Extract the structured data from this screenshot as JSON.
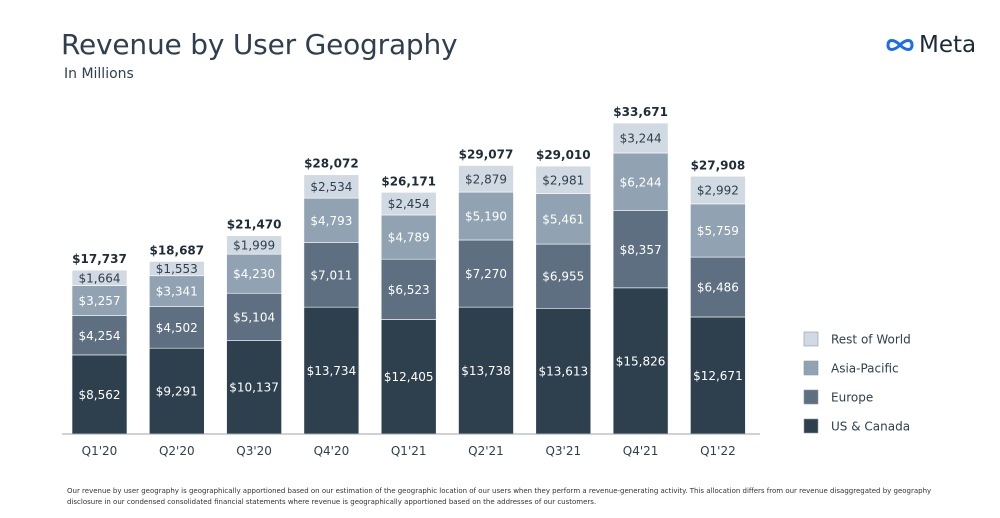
{
  "title": "Revenue by User Geography",
  "subtitle": "In Millions",
  "logo": {
    "text": "Meta",
    "icon": "meta-infinity-logo"
  },
  "footnote": "Our revenue by user geography is geographically apportioned based on our estimation of the geographic location of our users when they perform a revenue-generating activity. This allocation differs from our revenue disaggregated by geography disclosure in our condensed consolidated financial statements where revenue is geographically apportioned based on the addresses of our customers.",
  "colors": {
    "us_canada": "#2e3f4e",
    "europe": "#5d6f80",
    "asia_pacific": "#91a2b2",
    "rest_of_world": "#d1dae2",
    "total_text": "#1f2d3a",
    "axis": "#9aa5af"
  },
  "chart_data": {
    "type": "bar",
    "stacked": true,
    "title": "Revenue by User Geography",
    "subtitle": "In Millions",
    "categories": [
      "Q1'20",
      "Q2'20",
      "Q3'20",
      "Q4'20",
      "Q1'21",
      "Q2'21",
      "Q3'21",
      "Q4'21",
      "Q1'22"
    ],
    "series": [
      {
        "name": "US & Canada",
        "values": [
          8562,
          9291,
          10137,
          13734,
          12405,
          13738,
          13613,
          15826,
          12671
        ],
        "labels": [
          "$8,562",
          "$9,291",
          "$10,137",
          "$13,734",
          "$12,405",
          "$13,738",
          "$13,613",
          "$15,826",
          "$12,671"
        ]
      },
      {
        "name": "Europe",
        "values": [
          4254,
          4502,
          5104,
          7011,
          6523,
          7270,
          6955,
          8357,
          6486
        ],
        "labels": [
          "$4,254",
          "$4,502",
          "$5,104",
          "$7,011",
          "$6,523",
          "$7,270",
          "$6,955",
          "$8,357",
          "$6,486"
        ]
      },
      {
        "name": "Asia-Pacific",
        "values": [
          3257,
          3341,
          4230,
          4793,
          4789,
          5190,
          5461,
          6244,
          5759
        ],
        "labels": [
          "$3,257",
          "$3,341",
          "$4,230",
          "$4,793",
          "$4,789",
          "$5,190",
          "$5,461",
          "$6,244",
          "$5,759"
        ]
      },
      {
        "name": "Rest of World",
        "values": [
          1664,
          1553,
          1999,
          2534,
          2454,
          2879,
          2981,
          3244,
          2992
        ],
        "labels": [
          "$1,664",
          "$1,553",
          "$1,999",
          "$2,534",
          "$2,454",
          "$2,879",
          "$2,981",
          "$3,244",
          "$2,992"
        ]
      }
    ],
    "totals": [
      17737,
      18687,
      21470,
      28072,
      26171,
      29077,
      29010,
      33671,
      27908
    ],
    "total_labels": [
      "$17,737",
      "$18,687",
      "$21,470",
      "$28,072",
      "$26,171",
      "$29,077",
      "$29,010",
      "$33,671",
      "$27,908"
    ],
    "ylim": [
      0,
      34000
    ],
    "legend_position": "right",
    "legend_order": [
      "Rest of World",
      "Asia-Pacific",
      "Europe",
      "US & Canada"
    ],
    "grid": false
  }
}
